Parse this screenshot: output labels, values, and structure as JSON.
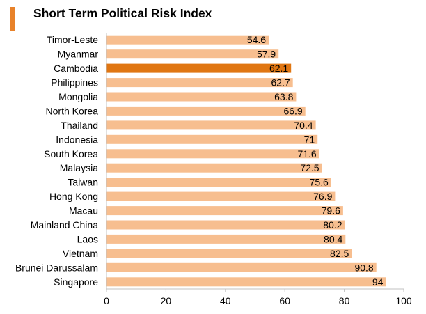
{
  "title": "Short Term Political Risk Index",
  "colors": {
    "accent": "#e8822a",
    "bar": "#f7be8f",
    "highlight": "#e07612",
    "axis": "#c0c0c0"
  },
  "chart_data": {
    "type": "bar",
    "orientation": "horizontal",
    "title": "Short Term Political Risk Index",
    "xlabel": "",
    "ylabel": "",
    "xlim": [
      0,
      100
    ],
    "xticks": [
      0,
      20,
      40,
      60,
      80,
      100
    ],
    "grid": false,
    "highlighted_category": "Cambodia",
    "categories": [
      "Timor-Leste",
      "Myanmar",
      "Cambodia",
      "Philippines",
      "Mongolia",
      "North Korea",
      "Thailand",
      "Indonesia",
      "South Korea",
      "Malaysia",
      "Taiwan",
      "Hong Kong",
      "Macau",
      "Mainland China",
      "Laos",
      "Vietnam",
      "Brunei Darussalam",
      "Singapore"
    ],
    "values": [
      54.6,
      57.9,
      62.1,
      62.7,
      63.8,
      66.9,
      70.4,
      71,
      71.6,
      72.5,
      75.6,
      76.9,
      79.6,
      80.2,
      80.4,
      82.5,
      90.8,
      94
    ]
  }
}
